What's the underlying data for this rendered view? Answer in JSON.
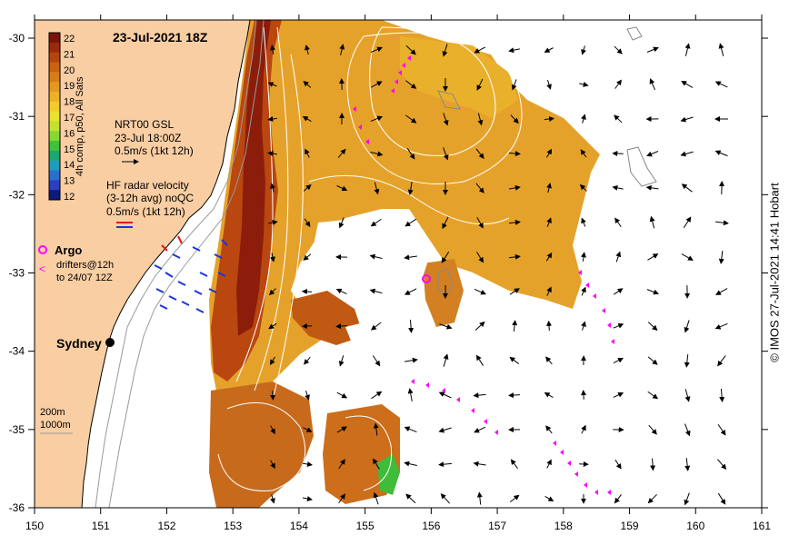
{
  "map": {
    "title": "23-Jul-2021 18Z",
    "lon_ticks": [
      "150",
      "151",
      "152",
      "153",
      "154",
      "155",
      "156",
      "157",
      "158",
      "159",
      "160",
      "161"
    ],
    "lat_ticks": [
      "-30",
      "-31",
      "-32",
      "-33",
      "-34",
      "-35",
      "-36"
    ],
    "colorbar": {
      "ticks": [
        "22",
        "21",
        "20",
        "19",
        "18",
        "17",
        "16",
        "15",
        "14",
        "13",
        "12"
      ],
      "label": "4h comp, p50, All Sats",
      "colors": [
        "#7a1208",
        "#9a2a0c",
        "#b5450f",
        "#c86212",
        "#d87c18",
        "#e3991f",
        "#ecb126",
        "#f3cc2b",
        "#e8e12d",
        "#c2e22f",
        "#86d832",
        "#3fc23a",
        "#19a86e",
        "#1f9bbd",
        "#2a6fd0",
        "#2c3fc0",
        "#0c1a7e"
      ]
    },
    "legend": {
      "gsl_line1": "NRT00 GSL",
      "gsl_line2": "23-Jul 18:00Z",
      "gsl_line3": "0.5m/s (1kt 12h)",
      "radar_line1": "HF radar velocity",
      "radar_line2": "(3-12h avg) noQC",
      "radar_line3": "0.5m/s (1kt 12h)",
      "argo_label": "Argo",
      "drifters_line1": "drifters@12h",
      "drifters_line2": "to 24/07 12Z",
      "depth_200": "200m",
      "depth_1000": "1000m"
    },
    "city": "Sydney",
    "credit": "© IMOS 27-Jul-2021 14:41 Hobart",
    "colors": {
      "land": "#f9cea3",
      "drifter": "#ff00ff",
      "radar_blue": "#1b35d6",
      "radar_red": "#e01818"
    }
  }
}
